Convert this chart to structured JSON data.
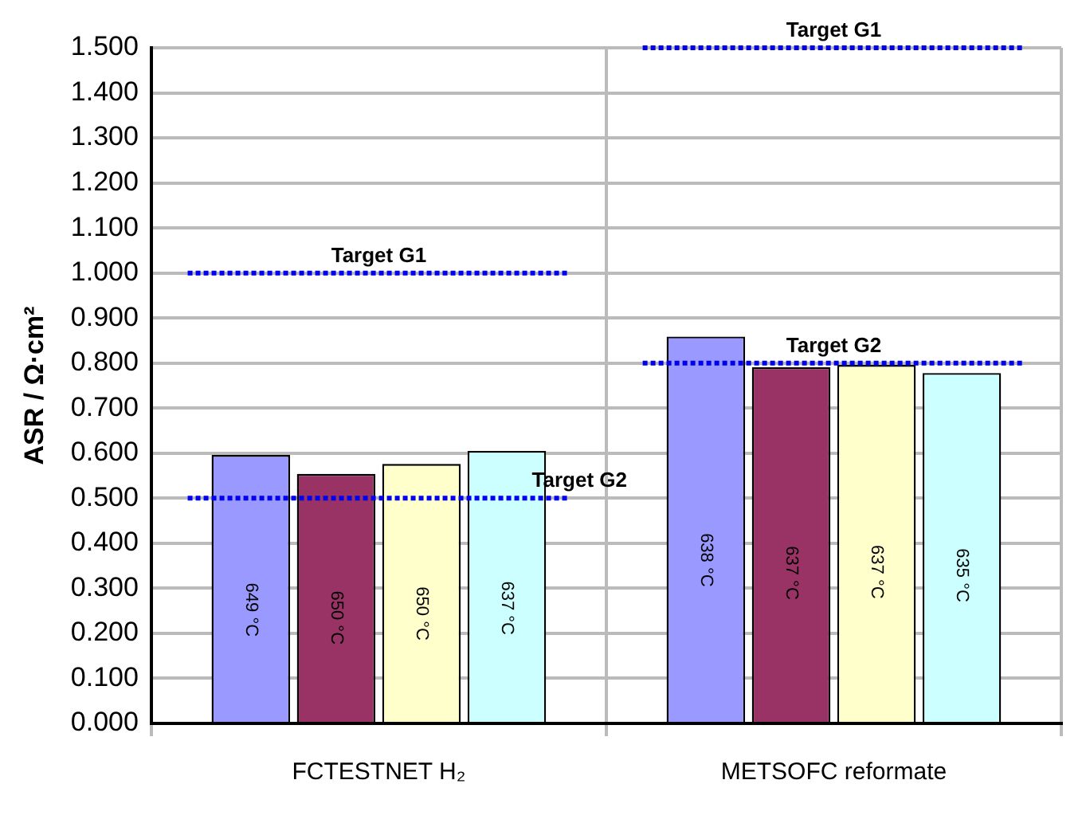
{
  "chart_data": {
    "type": "bar",
    "ylabel": "ASR / Ω·cm²",
    "categories": [
      "FCTESTNET H₂",
      "METSOFC reformate"
    ],
    "series": [
      {
        "color": "#9999ff",
        "values": [
          0.596,
          0.859
        ]
      },
      {
        "color": "#993366",
        "values": [
          0.554,
          0.791
        ]
      },
      {
        "color": "#ffffcc",
        "values": [
          0.576,
          0.796
        ]
      },
      {
        "color": "#ccffff",
        "values": [
          0.605,
          0.778
        ]
      }
    ],
    "ref_lines": [
      {
        "axis": "y",
        "value": 1.0,
        "label": "Target G1",
        "color": "#0000ee",
        "line_style": "dotted"
      },
      {
        "axis": "y",
        "value": 0.5,
        "label": "Target G2",
        "color": "#0000ee",
        "line_style": "dotted"
      },
      {
        "axis": "y",
        "value": 1.5,
        "label": "Target G1",
        "color": "#0000ee",
        "line_style": "dotted"
      },
      {
        "axis": "y",
        "value": 0.8,
        "label": "Target G2",
        "color": "#0000ee",
        "line_style": "dotted"
      }
    ],
    "ylim": [
      0,
      1.5
    ],
    "yticks": [
      {
        "value": 0,
        "label": "0.000"
      },
      {
        "value": 0.1,
        "label": "0.100"
      },
      {
        "value": 0.2,
        "label": "0.200"
      },
      {
        "value": 0.3,
        "label": "0.300"
      },
      {
        "value": 0.4,
        "label": "0.400"
      },
      {
        "value": 0.5,
        "label": "0.500"
      },
      {
        "value": 0.6,
        "label": "0.600"
      },
      {
        "value": 0.7,
        "label": "0.700"
      },
      {
        "value": 0.8,
        "label": "0.800"
      },
      {
        "value": 0.9,
        "label": "0.900"
      },
      {
        "value": 1.0,
        "label": "1.000"
      },
      {
        "value": 1.1,
        "label": "1.100"
      },
      {
        "value": 1.2,
        "label": "1.200"
      },
      {
        "value": 1.3,
        "label": "1.300"
      },
      {
        "value": 1.4,
        "label": "1.400"
      },
      {
        "value": 1.5,
        "label": "1.500"
      }
    ],
    "annotations": [
      "649 °C",
      "650 °C",
      "650 °C",
      "637 °C",
      "638 °C",
      "637 °C",
      "637 °C",
      "635 °C"
    ],
    "grid": true,
    "legend": false
  }
}
